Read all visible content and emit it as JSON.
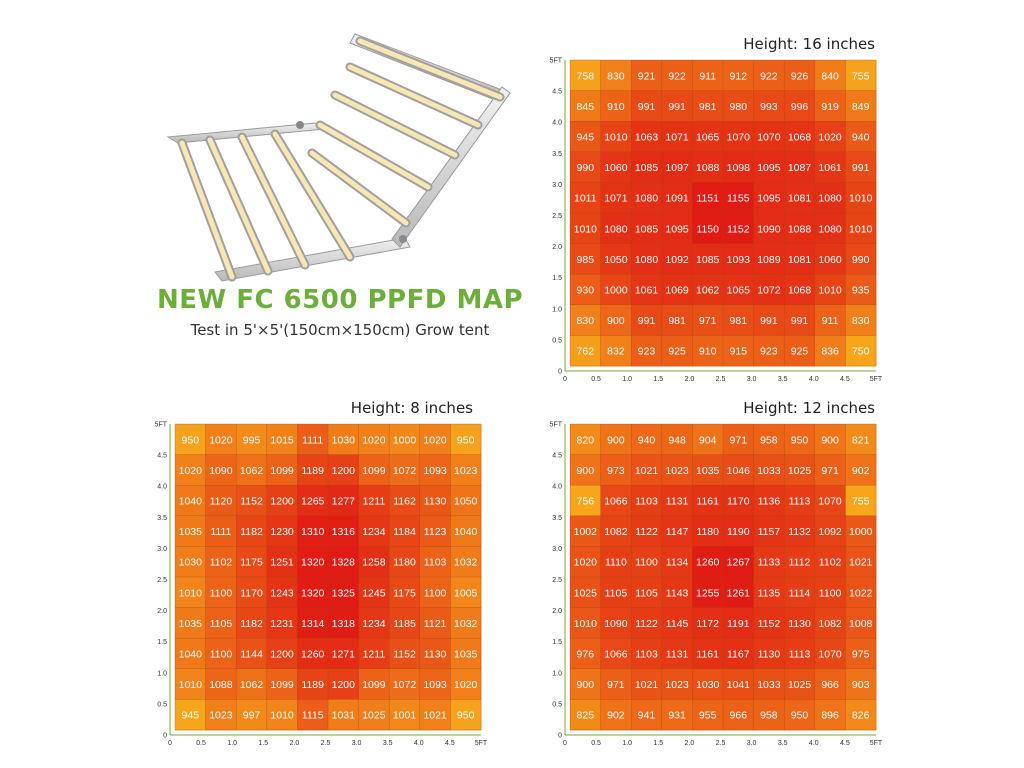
{
  "headline": "NEW FC 6500 PPFD MAP",
  "subtitle": "Test in 5'×5'(150cm×150cm) Grow tent",
  "colors": {
    "headline": "#6cae3a",
    "low": "#f7a61c",
    "high": "#e01a14",
    "grid": "#9a4a10"
  },
  "chart_data": [
    {
      "type": "heatmap",
      "title": "Height: 16 inches",
      "x_ticks": [
        "0",
        "0.5",
        "1.0",
        "1.5",
        "2.0",
        "2.5",
        "3.0",
        "3.5",
        "4.0",
        "4.5",
        "5FT"
      ],
      "y_ticks": [
        "0",
        "0.5",
        "1.0",
        "1.5",
        "2.0",
        "2.5",
        "3.0",
        "3.5",
        "4.0",
        "4.5",
        "5FT"
      ],
      "xlim": [
        0,
        5
      ],
      "ylim": [
        0,
        5
      ],
      "values": [
        [
          758,
          830,
          921,
          922,
          911,
          912,
          922,
          926,
          840,
          755
        ],
        [
          845,
          910,
          991,
          991,
          981,
          980,
          993,
          996,
          919,
          849
        ],
        [
          945,
          1010,
          1063,
          1071,
          1065,
          1070,
          1070,
          1068,
          1020,
          940
        ],
        [
          990,
          1060,
          1085,
          1097,
          1088,
          1098,
          1095,
          1087,
          1061,
          991
        ],
        [
          1011,
          1071,
          1080,
          1091,
          1151,
          1155,
          1095,
          1081,
          1080,
          1010
        ],
        [
          1010,
          1080,
          1085,
          1095,
          1150,
          1152,
          1090,
          1088,
          1080,
          1010
        ],
        [
          985,
          1050,
          1080,
          1092,
          1085,
          1093,
          1089,
          1081,
          1060,
          990
        ],
        [
          930,
          1000,
          1061,
          1069,
          1062,
          1065,
          1072,
          1068,
          1010,
          935
        ],
        [
          830,
          900,
          991,
          981,
          971,
          981,
          991,
          991,
          911,
          830
        ],
        [
          762,
          832,
          923,
          925,
          910,
          915,
          923,
          925,
          836,
          750
        ]
      ]
    },
    {
      "type": "heatmap",
      "title": "Height: 8 inches",
      "x_ticks": [
        "0",
        "0.5",
        "1.0",
        "1.5",
        "2.0",
        "2.5",
        "3.0",
        "3.5",
        "4.0",
        "4.5",
        "5FT"
      ],
      "y_ticks": [
        "0",
        "0.5",
        "1.0",
        "1.5",
        "2.0",
        "2.5",
        "3.0",
        "3.5",
        "4.0",
        "4.5",
        "5FT"
      ],
      "xlim": [
        0,
        5
      ],
      "ylim": [
        0,
        5
      ],
      "values": [
        [
          950,
          1020,
          995,
          1015,
          1111,
          1030,
          1020,
          1000,
          1020,
          950
        ],
        [
          1020,
          1090,
          1062,
          1099,
          1189,
          1200,
          1099,
          1072,
          1093,
          1023
        ],
        [
          1040,
          1120,
          1152,
          1200,
          1265,
          1277,
          1211,
          1162,
          1130,
          1050
        ],
        [
          1035,
          1111,
          1182,
          1230,
          1310,
          1316,
          1234,
          1184,
          1123,
          1040
        ],
        [
          1030,
          1102,
          1175,
          1251,
          1320,
          1328,
          1258,
          1180,
          1103,
          1032
        ],
        [
          1010,
          1100,
          1170,
          1243,
          1320,
          1325,
          1245,
          1175,
          1100,
          1005
        ],
        [
          1035,
          1105,
          1182,
          1231,
          1314,
          1318,
          1234,
          1185,
          1121,
          1032
        ],
        [
          1040,
          1100,
          1144,
          1200,
          1260,
          1271,
          1211,
          1152,
          1130,
          1035
        ],
        [
          1010,
          1088,
          1062,
          1099,
          1189,
          1200,
          1099,
          1072,
          1093,
          1020
        ],
        [
          945,
          1023,
          997,
          1010,
          1115,
          1031,
          1025,
          1001,
          1021,
          950
        ]
      ]
    },
    {
      "type": "heatmap",
      "title": "Height: 12 inches",
      "x_ticks": [
        "0",
        "0.5",
        "1.0",
        "1.5",
        "2.0",
        "2.5",
        "3.0",
        "3.5",
        "4.0",
        "4.5",
        "5FT"
      ],
      "y_ticks": [
        "0",
        "0.5",
        "1.0",
        "1.5",
        "2.0",
        "2.5",
        "3.0",
        "3.5",
        "4.0",
        "4.5",
        "5FT"
      ],
      "xlim": [
        0,
        5
      ],
      "ylim": [
        0,
        5
      ],
      "values": [
        [
          820,
          900,
          940,
          948,
          904,
          971,
          958,
          950,
          900,
          821
        ],
        [
          900,
          973,
          1021,
          1023,
          1035,
          1046,
          1033,
          1025,
          971,
          902
        ],
        [
          756,
          1066,
          1103,
          1131,
          1161,
          1170,
          1136,
          1113,
          1070,
          755
        ],
        [
          1002,
          1082,
          1122,
          1147,
          1180,
          1190,
          1157,
          1132,
          1092,
          1000
        ],
        [
          1020,
          1110,
          1100,
          1134,
          1260,
          1267,
          1133,
          1112,
          1102,
          1021
        ],
        [
          1025,
          1105,
          1105,
          1143,
          1255,
          1261,
          1135,
          1114,
          1100,
          1022
        ],
        [
          1010,
          1090,
          1122,
          1145,
          1172,
          1191,
          1152,
          1130,
          1082,
          1008
        ],
        [
          976,
          1066,
          1103,
          1131,
          1161,
          1167,
          1130,
          1113,
          1070,
          975
        ],
        [
          900,
          971,
          1021,
          1023,
          1030,
          1041,
          1033,
          1025,
          966,
          903
        ],
        [
          825,
          902,
          941,
          931,
          955,
          966,
          958,
          950,
          896,
          826
        ]
      ]
    }
  ]
}
